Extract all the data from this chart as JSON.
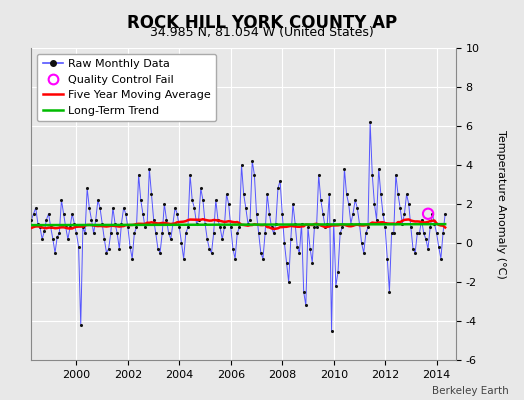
{
  "title": "ROCK HILL YORK COUNTY AP",
  "subtitle": "34.985 N, 81.054 W (United States)",
  "ylabel": "Temperature Anomaly (°C)",
  "attribution": "Berkeley Earth",
  "ylim": [
    -6,
    10
  ],
  "xlim": [
    1998.25,
    2014.75
  ],
  "yticks": [
    -6,
    -4,
    -2,
    0,
    2,
    4,
    6,
    8,
    10
  ],
  "xticks": [
    2000,
    2002,
    2004,
    2006,
    2008,
    2010,
    2012,
    2014
  ],
  "bg_color": "#e8e8e8",
  "plot_bg_color": "#e8e8e8",
  "raw_color": "#5555ff",
  "dot_color": "#111111",
  "ma_color": "#ff0000",
  "trend_color": "#00bb00",
  "qc_color": "#ff00ff",
  "title_fontsize": 12,
  "subtitle_fontsize": 9,
  "tick_fontsize": 8,
  "legend_fontsize": 8,
  "raw_monthly_data": [
    1.2,
    1.5,
    1.8,
    1.0,
    0.8,
    0.2,
    0.6,
    1.2,
    1.5,
    0.8,
    0.2,
    -0.5,
    0.3,
    0.5,
    2.2,
    1.5,
    0.8,
    0.2,
    0.8,
    1.5,
    1.0,
    0.5,
    -0.2,
    -4.2,
    0.8,
    0.5,
    2.8,
    1.8,
    1.2,
    0.5,
    1.2,
    2.2,
    1.8,
    1.0,
    0.2,
    -0.5,
    -0.3,
    0.5,
    1.8,
    1.0,
    0.5,
    -0.3,
    1.0,
    1.8,
    1.5,
    0.8,
    -0.2,
    -0.8,
    0.5,
    0.8,
    3.5,
    2.2,
    1.5,
    0.8,
    1.0,
    3.8,
    2.5,
    1.2,
    0.5,
    -0.3,
    -0.5,
    0.5,
    2.0,
    1.2,
    0.5,
    0.2,
    1.0,
    1.8,
    1.5,
    0.8,
    0.0,
    -0.8,
    0.5,
    0.8,
    3.5,
    2.2,
    1.8,
    1.0,
    1.2,
    2.8,
    2.2,
    1.0,
    0.2,
    -0.3,
    -0.5,
    0.5,
    2.2,
    1.2,
    0.8,
    0.2,
    0.8,
    2.5,
    2.0,
    0.8,
    -0.3,
    -0.8,
    0.5,
    0.8,
    4.0,
    2.5,
    1.8,
    1.0,
    1.2,
    4.2,
    3.5,
    1.5,
    0.5,
    -0.5,
    -0.8,
    0.5,
    2.5,
    1.5,
    0.8,
    0.5,
    1.0,
    2.8,
    3.2,
    1.5,
    0.0,
    -1.0,
    -2.0,
    0.2,
    2.0,
    1.0,
    -0.2,
    -0.5,
    1.0,
    -2.5,
    -3.2,
    0.8,
    -0.3,
    -1.0,
    0.8,
    0.8,
    3.5,
    2.2,
    1.5,
    0.8,
    1.0,
    2.5,
    -4.5,
    1.2,
    -2.2,
    -1.5,
    0.5,
    0.8,
    3.8,
    2.5,
    2.0,
    1.0,
    1.5,
    2.2,
    1.8,
    1.0,
    0.0,
    -0.5,
    0.5,
    0.8,
    6.2,
    3.5,
    2.0,
    1.2,
    3.8,
    2.5,
    1.5,
    0.8,
    -0.8,
    -2.5,
    0.5,
    0.5,
    3.5,
    2.5,
    1.8,
    1.0,
    1.5,
    2.5,
    2.0,
    0.8,
    -0.3,
    -0.5,
    0.5,
    0.5,
    1.2,
    0.5,
    0.2,
    -0.3,
    0.8,
    1.5,
    1.0,
    0.5,
    -0.2,
    -0.8,
    0.5,
    1.5
  ],
  "qc_fail_time": 2013.67,
  "qc_fail_value": 1.5,
  "start_year": 1998.25,
  "n_months": 194
}
